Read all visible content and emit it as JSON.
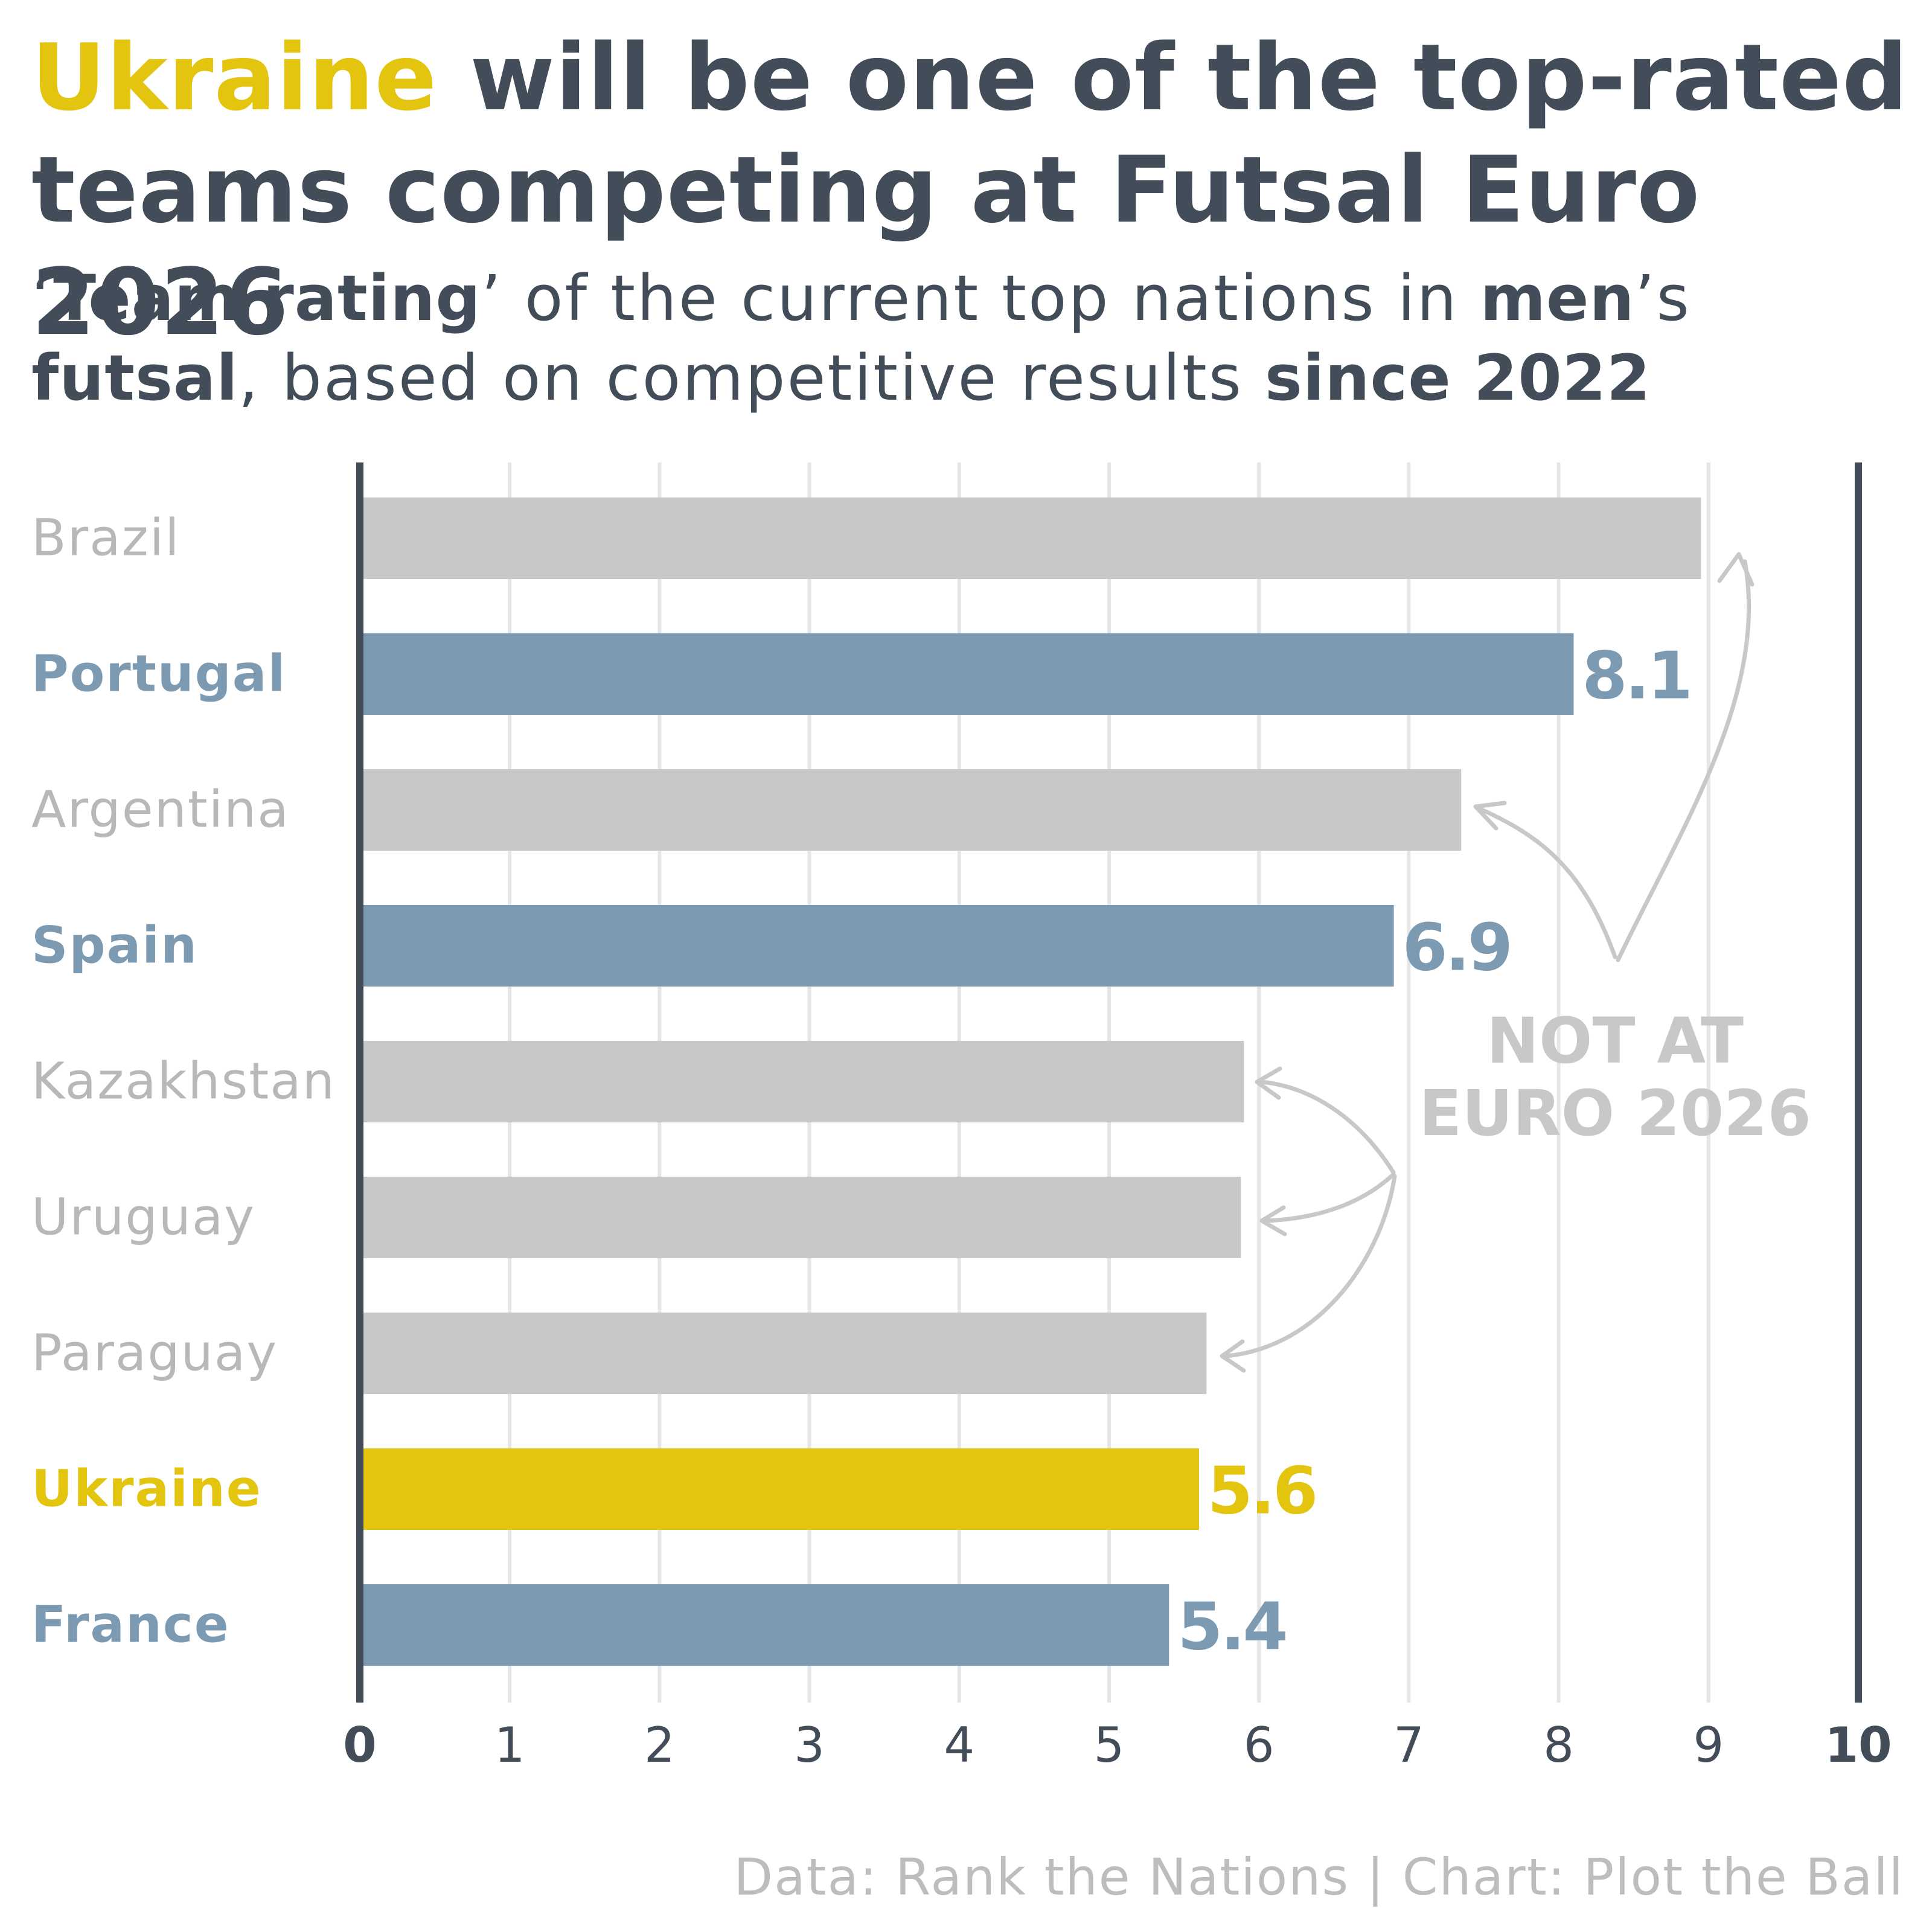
{
  "title": {
    "highlight": "Ukraine",
    "rest": " will be one of the top-rated teams competing at Futsal Euro 2026"
  },
  "subtitle": {
    "p1": "‘",
    "b1": "Team rating",
    "p2": "’ of the current top nations in ",
    "b2": "men",
    "p3": "’s ",
    "b3": "futsal",
    "p4": ", based on competitive results ",
    "b4": "since 2022"
  },
  "caption": "Data: Rank the Nations | Chart: Plot the Ball",
  "annotation": {
    "line1": "NOT AT",
    "line2": "EURO 2026"
  },
  "colors": {
    "ukraine": "#e3c40f",
    "euro": "#7c9bb3",
    "not_at_euro": "#c8c8c8",
    "axis": "#434d59",
    "grid": "#e6e6e6",
    "annotation": "#c8c8c8"
  },
  "chart_data": {
    "type": "bar",
    "orientation": "horizontal",
    "categories": [
      "Brazil",
      "Portugal",
      "Argentina",
      "Spain",
      "Kazakhstan",
      "Uruguay",
      "Paraguay",
      "Ukraine",
      "France"
    ],
    "values": [
      8.95,
      8.1,
      7.35,
      6.9,
      5.9,
      5.88,
      5.65,
      5.6,
      5.4
    ],
    "groups": [
      "not_at_euro",
      "euro",
      "not_at_euro",
      "euro",
      "not_at_euro",
      "not_at_euro",
      "not_at_euro",
      "ukraine",
      "euro"
    ],
    "data_labels": [
      "",
      "8.1",
      "",
      "6.9",
      "",
      "",
      "",
      "5.6",
      "5.4"
    ],
    "xlim": [
      0,
      10
    ],
    "xticks": [
      "0",
      "1",
      "2",
      "3",
      "4",
      "5",
      "6",
      "7",
      "8",
      "9",
      "10"
    ],
    "grid": true
  }
}
